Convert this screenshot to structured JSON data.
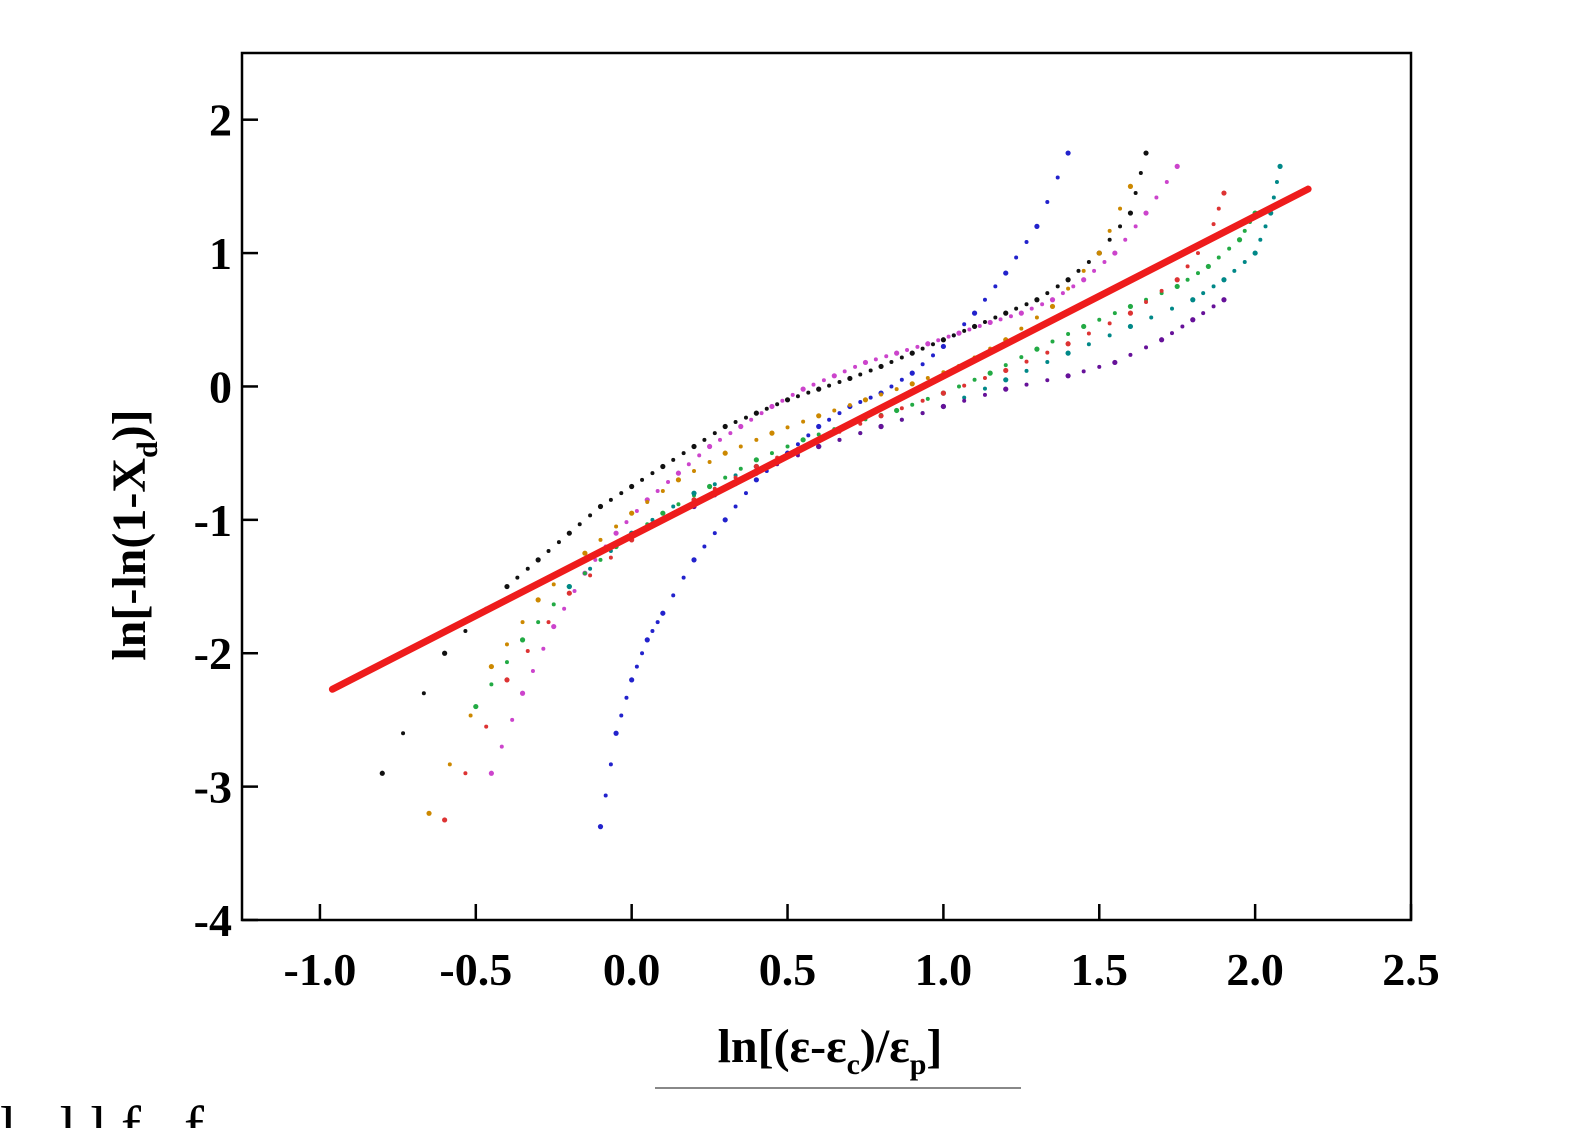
{
  "chart_data": {
    "type": "scatter",
    "title": "",
    "xlabel": "ln[(ε-ε",
    "xlabel_sub1": "c",
    "xlabel_mid": ")/ε",
    "xlabel_sub2": "p",
    "xlabel_end": "]",
    "ylabel": "ln[-ln(1-X",
    "ylabel_sub": "d",
    "ylabel_end": ")]",
    "xlim": [
      -1.25,
      2.5
    ],
    "ylim": [
      -4,
      2.5
    ],
    "x_ticks": [
      -1.0,
      -0.5,
      0.0,
      0.5,
      1.0,
      1.5,
      2.0,
      2.5
    ],
    "x_tick_labels": [
      "-1.0",
      "-0.5",
      "0.0",
      "0.5",
      "1.0",
      "1.5",
      "2.0",
      "2.5"
    ],
    "y_ticks": [
      -4,
      -3,
      -2,
      -1,
      0,
      1,
      2
    ],
    "y_tick_labels": [
      "-4",
      "-3",
      "-2",
      "-1",
      "0",
      "1",
      "2"
    ],
    "grid": false,
    "series": [
      {
        "color": "#2222cc",
        "x": [
          -0.1,
          -0.05,
          0.0,
          0.05,
          0.1,
          0.2,
          0.3,
          0.4,
          0.5,
          0.6,
          0.7,
          0.8,
          0.9,
          1.0,
          1.1,
          1.2,
          1.3,
          1.4
        ],
        "y": [
          -3.3,
          -2.6,
          -2.2,
          -1.9,
          -1.7,
          -1.3,
          -1.0,
          -0.7,
          -0.5,
          -0.3,
          -0.15,
          -0.05,
          0.1,
          0.3,
          0.55,
          0.85,
          1.2,
          1.75
        ]
      },
      {
        "color": "#111111",
        "x": [
          -0.8,
          -0.6,
          -0.4,
          -0.3,
          -0.2,
          -0.1,
          0.0,
          0.1,
          0.2,
          0.3,
          0.4,
          0.5,
          0.6,
          0.7,
          0.8,
          0.9,
          1.0,
          1.1,
          1.2,
          1.3,
          1.4,
          1.5,
          1.6,
          1.65
        ],
        "y": [
          -2.9,
          -2.0,
          -1.5,
          -1.3,
          -1.1,
          -0.9,
          -0.75,
          -0.6,
          -0.45,
          -0.3,
          -0.2,
          -0.1,
          -0.02,
          0.06,
          0.15,
          0.25,
          0.35,
          0.45,
          0.55,
          0.65,
          0.8,
          1.0,
          1.3,
          1.75
        ]
      },
      {
        "color": "#cc44cc",
        "x": [
          -0.45,
          -0.35,
          -0.25,
          -0.15,
          -0.05,
          0.05,
          0.15,
          0.25,
          0.35,
          0.45,
          0.55,
          0.65,
          0.75,
          0.85,
          0.95,
          1.05,
          1.15,
          1.25,
          1.35,
          1.45,
          1.55,
          1.65,
          1.75
        ],
        "y": [
          -2.9,
          -2.3,
          -1.8,
          -1.4,
          -1.1,
          -0.85,
          -0.65,
          -0.45,
          -0.3,
          -0.15,
          -0.02,
          0.08,
          0.18,
          0.25,
          0.32,
          0.4,
          0.48,
          0.55,
          0.65,
          0.8,
          1.0,
          1.3,
          1.65
        ]
      },
      {
        "color": "#22aa44",
        "x": [
          -0.5,
          -0.35,
          -0.2,
          -0.05,
          0.1,
          0.25,
          0.4,
          0.55,
          0.7,
          0.85,
          1.0,
          1.15,
          1.3,
          1.45,
          1.6,
          1.75,
          1.85,
          1.95,
          2.0
        ],
        "y": [
          -2.4,
          -1.9,
          -1.5,
          -1.2,
          -0.95,
          -0.75,
          -0.55,
          -0.4,
          -0.28,
          -0.18,
          -0.05,
          0.1,
          0.28,
          0.45,
          0.6,
          0.75,
          0.9,
          1.1,
          1.3
        ]
      },
      {
        "color": "#cc8800",
        "x": [
          -0.65,
          -0.45,
          -0.3,
          -0.15,
          0.0,
          0.15,
          0.3,
          0.45,
          0.6,
          0.75,
          0.9,
          1.05,
          1.2,
          1.35,
          1.5,
          1.6
        ],
        "y": [
          -3.2,
          -2.1,
          -1.6,
          -1.25,
          -0.95,
          -0.7,
          -0.5,
          -0.35,
          -0.22,
          -0.1,
          0.02,
          0.15,
          0.35,
          0.6,
          1.0,
          1.5
        ]
      },
      {
        "color": "#008888",
        "x": [
          -0.2,
          0.0,
          0.2,
          0.4,
          0.6,
          0.8,
          1.0,
          1.2,
          1.4,
          1.6,
          1.8,
          1.9,
          2.0,
          2.05,
          2.08
        ],
        "y": [
          -1.5,
          -1.1,
          -0.8,
          -0.6,
          -0.45,
          -0.3,
          -0.15,
          0.05,
          0.25,
          0.45,
          0.65,
          0.8,
          1.0,
          1.3,
          1.65
        ]
      },
      {
        "color": "#661199",
        "x": [
          0.2,
          0.4,
          0.6,
          0.8,
          1.0,
          1.2,
          1.4,
          1.55,
          1.7,
          1.8,
          1.9
        ],
        "y": [
          -0.9,
          -0.65,
          -0.45,
          -0.3,
          -0.15,
          -0.02,
          0.08,
          0.18,
          0.35,
          0.5,
          0.65
        ]
      },
      {
        "color": "#dd3333",
        "x": [
          -0.6,
          -0.4,
          -0.2,
          0.0,
          0.2,
          0.4,
          0.6,
          0.8,
          1.0,
          1.2,
          1.4,
          1.6,
          1.75,
          1.85,
          1.9
        ],
        "y": [
          -3.25,
          -2.2,
          -1.55,
          -1.15,
          -0.85,
          -0.6,
          -0.4,
          -0.22,
          -0.05,
          0.12,
          0.32,
          0.55,
          0.8,
          1.1,
          1.45
        ]
      }
    ],
    "fit_line": {
      "color": "#ee1c1c",
      "x": [
        -0.96,
        2.17
      ],
      "y": [
        -2.27,
        1.48
      ]
    }
  },
  "caption_fragment": "l                                    llf                    f"
}
